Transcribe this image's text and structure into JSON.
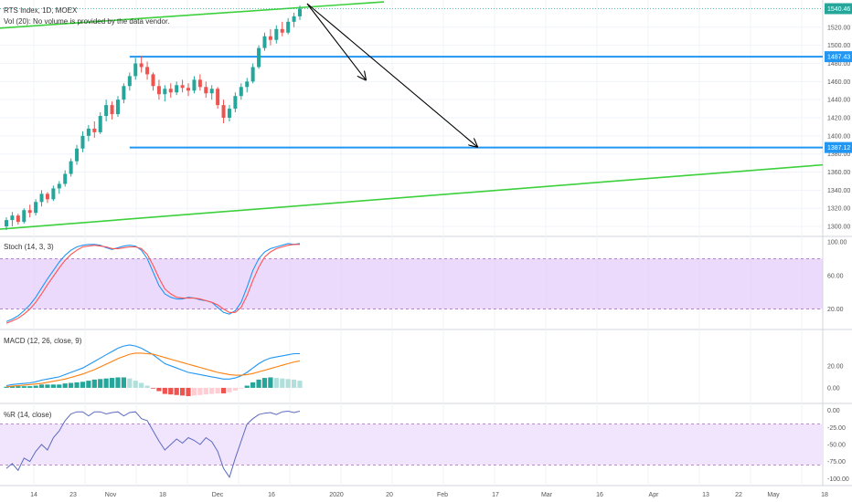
{
  "header": {
    "title": "RTS Index, 1D, MOEX",
    "volume_note": "Vol (20): No volume is provided by the data vendor."
  },
  "colors": {
    "up": "#26a69a",
    "down": "#ef5350",
    "trend": "#3cd13c",
    "level": "#2196f3",
    "last_tag": "#26a69a",
    "level_tag": "#2196f3",
    "band": "#e6cdfb",
    "band_wr": "#f1e4fd",
    "stoch_k": "#2196f3",
    "stoch_d": "#ff5252",
    "macd": "#2196f3",
    "signal": "#ff7f0e",
    "hist_pos_strong": "#26a69a",
    "hist_pos_weak": "#b2dfdb",
    "hist_neg_strong": "#ef5350",
    "hist_neg_weak": "#ffcdd2",
    "wr": "#5c6bc0",
    "arrow": "#000000"
  },
  "chart_data": [
    {
      "type": "candlestick",
      "title": "RTS Index, 1D, MOEX",
      "ylim": [
        1290,
        1545
      ],
      "y_ticks": [
        "1520.00",
        "1500.00",
        "1480.00",
        "1460.00",
        "1440.00",
        "1420.00",
        "1400.00",
        "1380.00",
        "1360.00",
        "1340.00",
        "1320.00",
        "1300.00"
      ],
      "y_tick_values": [
        1520,
        1500,
        1480,
        1460,
        1440,
        1420,
        1400,
        1380,
        1360,
        1340,
        1320,
        1300
      ],
      "ohlc": [
        [
          1300,
          1310,
          1296,
          1307
        ],
        [
          1307,
          1316,
          1300,
          1312
        ],
        [
          1312,
          1314,
          1302,
          1305
        ],
        [
          1305,
          1320,
          1303,
          1318
        ],
        [
          1318,
          1324,
          1310,
          1315
        ],
        [
          1315,
          1330,
          1312,
          1327
        ],
        [
          1327,
          1340,
          1322,
          1336
        ],
        [
          1336,
          1338,
          1326,
          1330
        ],
        [
          1330,
          1345,
          1328,
          1342
        ],
        [
          1342,
          1350,
          1336,
          1347
        ],
        [
          1347,
          1362,
          1344,
          1358
        ],
        [
          1358,
          1375,
          1355,
          1372
        ],
        [
          1372,
          1390,
          1368,
          1386
        ],
        [
          1386,
          1405,
          1382,
          1400
        ],
        [
          1400,
          1412,
          1394,
          1408
        ],
        [
          1408,
          1416,
          1398,
          1404
        ],
        [
          1404,
          1426,
          1402,
          1422
        ],
        [
          1422,
          1440,
          1416,
          1434
        ],
        [
          1434,
          1438,
          1418,
          1424
        ],
        [
          1424,
          1444,
          1421,
          1440
        ],
        [
          1440,
          1458,
          1436,
          1455
        ],
        [
          1455,
          1470,
          1450,
          1466
        ],
        [
          1466,
          1486,
          1462,
          1480
        ],
        [
          1480,
          1488,
          1470,
          1476
        ],
        [
          1476,
          1482,
          1462,
          1468
        ],
        [
          1468,
          1470,
          1450,
          1455
        ],
        [
          1455,
          1462,
          1440,
          1446
        ],
        [
          1446,
          1456,
          1438,
          1452
        ],
        [
          1452,
          1458,
          1442,
          1448
        ],
        [
          1448,
          1460,
          1445,
          1456
        ],
        [
          1456,
          1462,
          1448,
          1453
        ],
        [
          1453,
          1458,
          1444,
          1450
        ],
        [
          1450,
          1466,
          1447,
          1462
        ],
        [
          1462,
          1468,
          1450,
          1454
        ],
        [
          1454,
          1460,
          1442,
          1447
        ],
        [
          1447,
          1456,
          1440,
          1452
        ],
        [
          1452,
          1454,
          1430,
          1434
        ],
        [
          1434,
          1440,
          1414,
          1420
        ],
        [
          1420,
          1434,
          1416,
          1430
        ],
        [
          1430,
          1448,
          1426,
          1444
        ],
        [
          1444,
          1458,
          1440,
          1454
        ],
        [
          1454,
          1464,
          1448,
          1460
        ],
        [
          1460,
          1480,
          1458,
          1476
        ],
        [
          1476,
          1500,
          1474,
          1497
        ],
        [
          1497,
          1514,
          1494,
          1510
        ],
        [
          1510,
          1518,
          1500,
          1506
        ],
        [
          1506,
          1522,
          1502,
          1518
        ],
        [
          1518,
          1526,
          1510,
          1514
        ],
        [
          1514,
          1530,
          1512,
          1526
        ],
        [
          1526,
          1536,
          1520,
          1532
        ],
        [
          1532,
          1544,
          1528,
          1540.46
        ]
      ],
      "horizontal_levels": [
        1487.43,
        1387.12
      ],
      "last_price": 1540.46,
      "tags": [
        "1540.46",
        "1487.43",
        "1387.12"
      ]
    },
    {
      "type": "line",
      "title": "Stoch (14, 3, 3)",
      "ylim": [
        0,
        100
      ],
      "y_ticks": [
        "100.00",
        "60.00",
        "20.00"
      ],
      "y_tick_values": [
        100,
        60,
        20
      ],
      "band": [
        20,
        80
      ],
      "series": [
        {
          "values": [
            5,
            8,
            12,
            18,
            25,
            34,
            45,
            56,
            66,
            76,
            84,
            90,
            94,
            96,
            97,
            97,
            96,
            93,
            91,
            93,
            95,
            96,
            95,
            90,
            80,
            64,
            48,
            38,
            34,
            32,
            32,
            34,
            33,
            31,
            30,
            28,
            22,
            16,
            14,
            18,
            28,
            46,
            66,
            80,
            88,
            92,
            94,
            96,
            98,
            97,
            98
          ]
        },
        {
          "values": [
            3,
            6,
            9,
            14,
            20,
            28,
            38,
            49,
            59,
            69,
            78,
            85,
            90,
            94,
            95,
            96,
            95,
            94,
            92,
            92,
            93,
            94,
            94,
            92,
            85,
            72,
            57,
            44,
            38,
            34,
            33,
            33,
            33,
            32,
            30,
            28,
            25,
            20,
            16,
            16,
            22,
            36,
            54,
            70,
            82,
            88,
            92,
            94,
            96,
            97,
            97
          ]
        }
      ]
    },
    {
      "type": "line",
      "title": "MACD (12, 26, close, 9)",
      "ylim": [
        -10,
        48
      ],
      "y_ticks": [
        "20.00",
        "0.00"
      ],
      "y_tick_values": [
        20,
        0
      ],
      "series": [
        {
          "values": [
            2,
            3,
            3.5,
            4,
            4.5,
            5.5,
            7,
            8,
            9,
            10,
            12,
            14,
            16,
            18,
            21,
            24,
            27,
            30,
            33,
            36,
            38,
            39,
            38,
            36,
            33,
            30,
            26,
            22,
            20,
            18,
            16,
            14,
            13,
            12,
            11,
            10,
            9,
            8,
            8,
            9,
            11,
            14,
            18,
            22,
            25,
            27,
            28,
            29,
            30,
            31,
            31
          ]
        },
        {
          "values": [
            1,
            1.5,
            2,
            2.5,
            3,
            3.5,
            4,
            5,
            6,
            7,
            8,
            9.5,
            11,
            12.5,
            14.5,
            16.5,
            19,
            21.5,
            24,
            26.5,
            28.5,
            30.5,
            31.5,
            31.5,
            31,
            30.5,
            29,
            27.5,
            26,
            24.5,
            23,
            21.5,
            20,
            18.5,
            17,
            15.5,
            14,
            13,
            12,
            11.5,
            11.5,
            12,
            13,
            14.5,
            16,
            17.5,
            19,
            20.5,
            22,
            23.5,
            24.5
          ]
        }
      ],
      "histogram": [
        1,
        1.5,
        1.5,
        1.5,
        1.5,
        2,
        3,
        3,
        3,
        3,
        4,
        4.5,
        5,
        5.5,
        6.5,
        7.5,
        8,
        8.5,
        9,
        9.5,
        9.5,
        8.5,
        6.5,
        4.5,
        2,
        -0.5,
        -3,
        -5.5,
        -6,
        -6.5,
        -7,
        -7.5,
        -7,
        -6.5,
        -6,
        -5.5,
        -5,
        -5,
        -4,
        -2.5,
        -0.5,
        2,
        5,
        7.5,
        9,
        9.5,
        9,
        8.5,
        8,
        7.5,
        6.5
      ]
    },
    {
      "type": "line",
      "title": "%R (14, close)",
      "ylim": [
        -105,
        5
      ],
      "y_ticks": [
        "0.00",
        "-25.00",
        "-50.00",
        "-75.00",
        "-100.00"
      ],
      "y_tick_values": [
        0,
        -25,
        -50,
        -75,
        -100
      ],
      "band": [
        -80,
        -20
      ],
      "series": [
        {
          "values": [
            -85,
            -78,
            -88,
            -70,
            -75,
            -60,
            -50,
            -58,
            -40,
            -30,
            -15,
            -5,
            -2,
            -2,
            -8,
            -2,
            -2,
            -5,
            -3,
            -2,
            -8,
            -3,
            -2,
            -12,
            -15,
            -30,
            -45,
            -58,
            -50,
            -42,
            -48,
            -40,
            -44,
            -50,
            -40,
            -46,
            -60,
            -85,
            -98,
            -70,
            -45,
            -20,
            -12,
            -6,
            -4,
            -3,
            -6,
            -2,
            -1,
            -3,
            -1
          ]
        }
      ]
    }
  ],
  "x_axis": {
    "labels": [
      "14",
      "23",
      "Nov",
      "18",
      "Dec",
      "16",
      "2020",
      "20",
      "Feb",
      "17",
      "Mar",
      "16",
      "Apr",
      "13",
      "22",
      "May",
      "18"
    ]
  },
  "annotations": {
    "arrows": [
      "arrow-1",
      "arrow-2"
    ]
  }
}
